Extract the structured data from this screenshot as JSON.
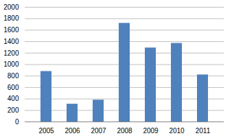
{
  "chart_data": {
    "type": "bar",
    "categories": [
      "2005",
      "2006",
      "2007",
      "2008",
      "2009",
      "2010",
      "2011"
    ],
    "values": [
      880,
      310,
      380,
      1720,
      1290,
      1370,
      820
    ],
    "color": "#4f81bd",
    "ylim": [
      0,
      2000
    ],
    "yticks": [
      0,
      200,
      400,
      600,
      800,
      1000,
      1200,
      1400,
      1600,
      1800,
      2000
    ],
    "grid": true
  }
}
